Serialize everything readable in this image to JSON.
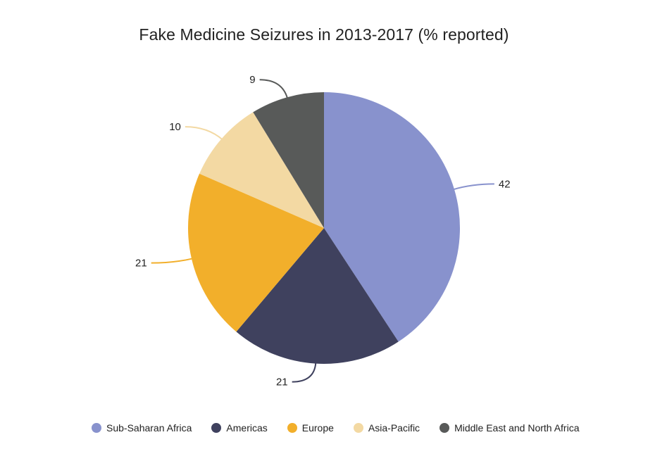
{
  "chart_data": {
    "type": "pie",
    "title": "Fake Medicine Seizures in 2013-2017 (% reported)",
    "legend_position": "bottom",
    "slices": [
      {
        "label": "Sub-Saharan Africa",
        "value": 42,
        "color": "#8892CD"
      },
      {
        "label": "Americas",
        "value": 21,
        "color": "#3F415E"
      },
      {
        "label": "Europe",
        "value": 21,
        "color": "#F2AF2B"
      },
      {
        "label": "Asia-Pacific",
        "value": 10,
        "color": "#F3D9A3"
      },
      {
        "label": "Middle East and North Africa",
        "value": 9,
        "color": "#585A59"
      }
    ]
  }
}
